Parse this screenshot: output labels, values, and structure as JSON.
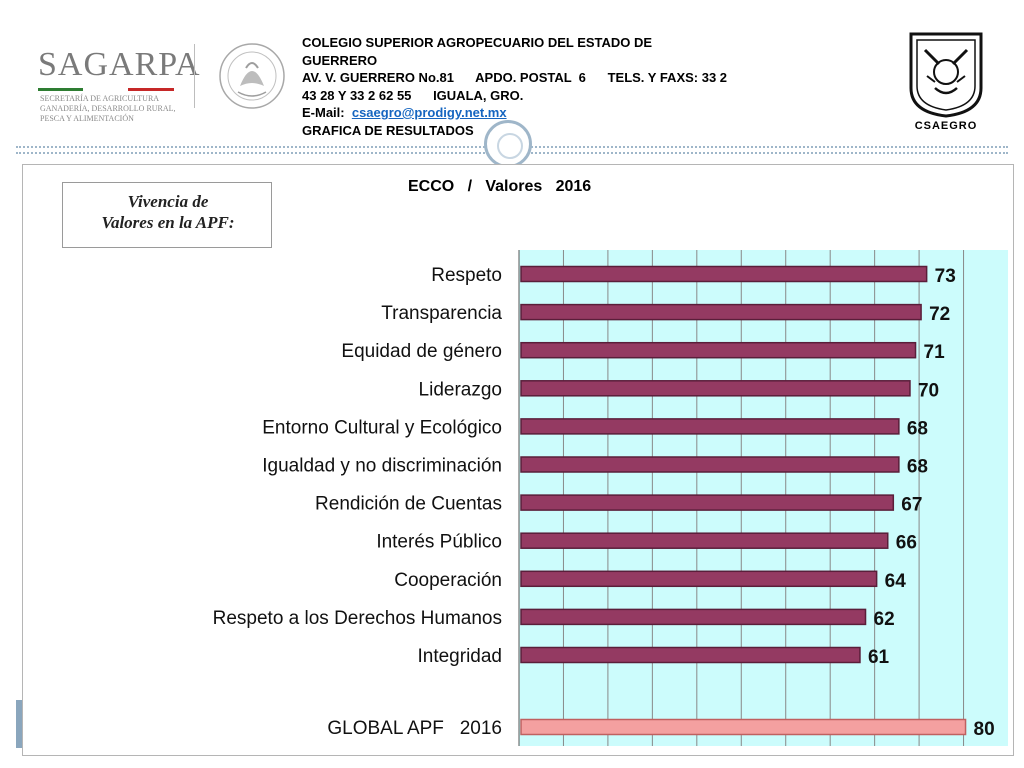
{
  "header": {
    "sagarpa_word": "SAGARPA",
    "sagarpa_subtitle": "SECRETARÍA DE AGRICULTURA GANADERÍA, DESARROLLO RURAL, PESCA Y ALIMENTACIÓN",
    "line1": "COLEGIO SUPERIOR AGROPECUARIO DEL ESTADO DE",
    "line2": "GUERRERO",
    "line3": "AV. V. GUERRERO No.81      APDO. POSTAL  6      TELS. Y FAXS: 33 2",
    "line4": "43 28 Y 33 2 62 55      IGUALA, GRO.",
    "email_label": "E-Mail:  ",
    "email": "csaegro@prodigy.net.mx",
    "line6": "GRAFICA DE RESULTADOS",
    "csaegro_label": "CSAEGRO"
  },
  "apf_box": {
    "line1": "Vivencia de",
    "line2": "Valores en la APF:"
  },
  "chart_title": "ECCO   /   Valores   2016",
  "colors": {
    "bar": "#943a62",
    "global_bar": "#f4a0a0",
    "plot_bg": "#ccfcfc",
    "grid": "#888888"
  },
  "chart_data": {
    "type": "bar",
    "orientation": "horizontal",
    "title": "ECCO   /   Valores   2016",
    "categories": [
      "Respeto",
      "Transparencia",
      "Equidad de género",
      "Liderazgo",
      "Entorno Cultural y Ecológico",
      "Igualdad y no discriminación",
      "Rendición de Cuentas",
      "Interés Público",
      "Cooperación",
      "Respeto a los Derechos Humanos",
      "Integridad"
    ],
    "values": [
      73,
      72,
      71,
      70,
      68,
      68,
      67,
      66,
      64,
      62,
      61
    ],
    "global": {
      "label": "GLOBAL APF   2016",
      "value": 80
    },
    "xlim": [
      0,
      88
    ],
    "grid": true,
    "data_labels": true,
    "legend": "none"
  }
}
